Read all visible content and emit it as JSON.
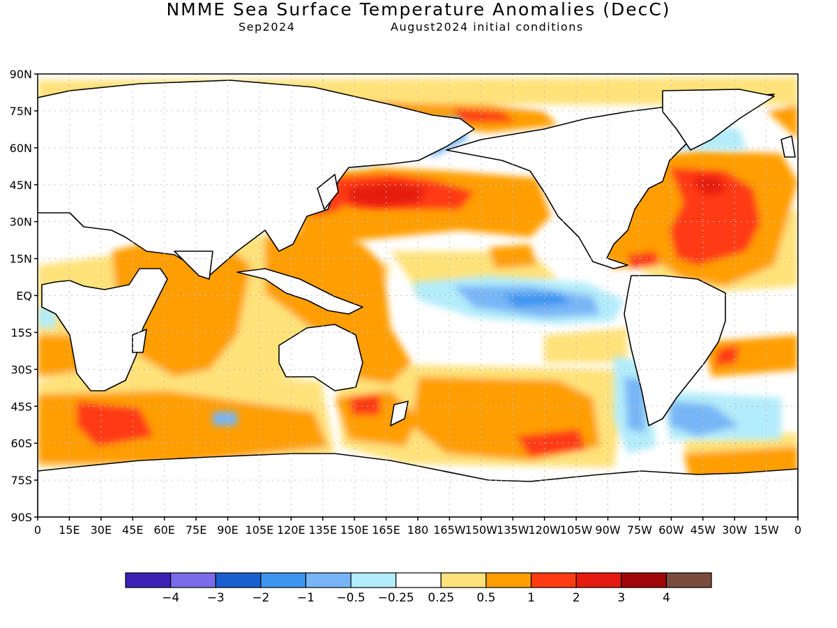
{
  "title": "NMME Sea Surface Temperature Anomalies (DecC)",
  "subtitle_left": "Sep2024",
  "subtitle_right": "August2024 initial conditions",
  "lat_labels": [
    "90N",
    "75N",
    "60N",
    "45N",
    "30N",
    "15N",
    "EQ",
    "15S",
    "30S",
    "45S",
    "60S",
    "75S",
    "90S"
  ],
  "lon_labels": [
    "0",
    "15E",
    "30E",
    "45E",
    "60E",
    "75E",
    "90E",
    "105E",
    "120E",
    "135E",
    "150E",
    "165E",
    "180",
    "165W",
    "150W",
    "135W",
    "120W",
    "105W",
    "90W",
    "75W",
    "60W",
    "45W",
    "30W",
    "15W",
    "0"
  ],
  "legend": {
    "colors": [
      "#3b22b5",
      "#7a6bea",
      "#1a5fcf",
      "#3e95f0",
      "#78b5f6",
      "#b3ecfa",
      "#ffffff",
      "#ffe27a",
      "#ff9e00",
      "#ff3b12",
      "#e41a0e",
      "#a00808",
      "#7a4c3e"
    ],
    "labels": [
      "−4",
      "−3",
      "−2",
      "−1",
      "−0.5",
      "−0.25",
      "0.25",
      "0.5",
      "1",
      "2",
      "3",
      "4"
    ]
  }
}
